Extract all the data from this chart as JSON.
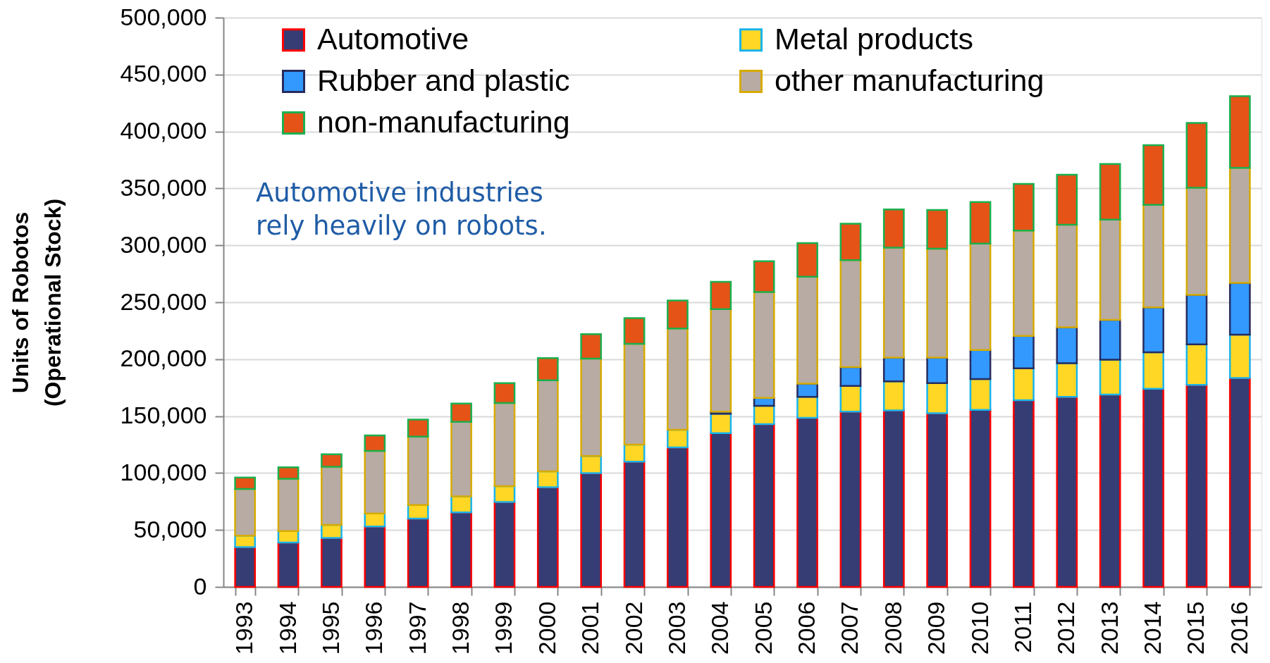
{
  "chart_data": {
    "type": "bar",
    "stacked": true,
    "ylabel": "Units of Robotos\n(Operational Stock)",
    "annotations": [
      "Automotive industries\nrely heavily on robots."
    ],
    "categories": [
      "1993",
      "1994",
      "1995",
      "1996",
      "1997",
      "1998",
      "1999",
      "2000",
      "2001",
      "2002",
      "2003",
      "2004",
      "2005",
      "2006",
      "2007",
      "2008",
      "2009",
      "2010",
      "2011",
      "2012",
      "2013",
      "2014",
      "2015",
      "2016"
    ],
    "series": [
      {
        "name": "Automotive",
        "color": "#363c74",
        "values": [
          35000,
          39000,
          43000,
          53000,
          60000,
          65500,
          74500,
          87500,
          100000,
          110000,
          122500,
          135000,
          143000,
          148500,
          154000,
          155000,
          152500,
          155500,
          164000,
          167000,
          169000,
          174000,
          177500,
          183500
        ]
      },
      {
        "name": "Metal products",
        "color": "#ffd724",
        "values": [
          10000,
          10000,
          11500,
          11500,
          12000,
          14000,
          14000,
          14000,
          15000,
          15000,
          15500,
          17000,
          16000,
          18500,
          22500,
          25500,
          26500,
          27000,
          28000,
          29500,
          30500,
          32000,
          35500,
          38000
        ]
      },
      {
        "name": "Rubber and plastic",
        "color": "#3399ff",
        "values": [
          null,
          null,
          null,
          null,
          null,
          null,
          null,
          null,
          null,
          null,
          null,
          2000,
          7000,
          11500,
          16500,
          21000,
          22500,
          25500,
          28500,
          31500,
          35000,
          39500,
          43500,
          45500
        ]
      },
      {
        "name": "other manufacturing",
        "color": "#b8aba3",
        "values": [
          41000,
          46000,
          51000,
          55000,
          60000,
          65500,
          73000,
          80000,
          85500,
          88500,
          89000,
          90000,
          93000,
          94000,
          94000,
          96500,
          95500,
          93500,
          92500,
          90000,
          88000,
          90000,
          94000,
          101000
        ]
      },
      {
        "name": "non-manufacturing",
        "color": "#e55316",
        "values": [
          10000,
          10000,
          11000,
          13500,
          15000,
          16000,
          17500,
          19500,
          21500,
          22500,
          24500,
          24000,
          27000,
          29500,
          32000,
          33500,
          34000,
          36500,
          41000,
          44000,
          49000,
          52500,
          57000,
          63000
        ]
      }
    ],
    "ylim": [
      0,
      500000
    ],
    "yticks": [
      0,
      {
        "value": 50000,
        "label": "50,000"
      },
      {
        "value": 100000,
        "label": "100,000"
      },
      {
        "value": 150000,
        "label": "150,000"
      },
      {
        "value": 200000,
        "label": "200,000"
      },
      {
        "value": 250000,
        "label": "250,000"
      },
      {
        "value": 300000,
        "label": "300,000"
      },
      {
        "value": 350000,
        "label": "350,000"
      },
      {
        "value": 400000,
        "label": "400,000"
      },
      {
        "value": 450000,
        "label": "450,000"
      },
      {
        "value": 500000,
        "label": "500,000"
      }
    ],
    "grid": "y",
    "legend": "top left"
  }
}
